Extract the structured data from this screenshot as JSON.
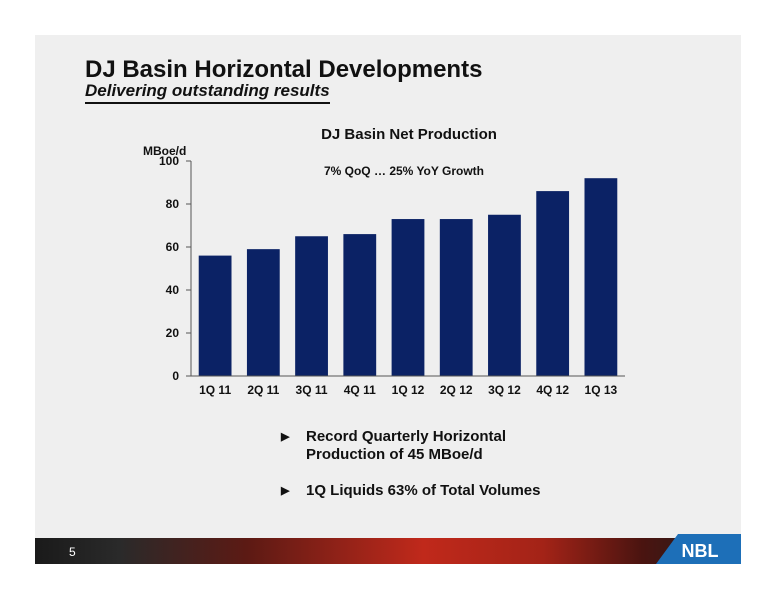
{
  "slide": {
    "title": "DJ Basin Horizontal Developments",
    "subtitle": "Delivering outstanding results",
    "page_number": "5",
    "logo_text": "NBL",
    "bullets": [
      "Record Quarterly Horizontal Production of 45 MBoe/d",
      "1Q Liquids 63% of Total Volumes"
    ],
    "colors": {
      "bar": "#0b2265",
      "background": "#efefef",
      "accent_red": "#c0291b",
      "logo_blue": "#1d6fb8"
    }
  },
  "chart_data": {
    "type": "bar",
    "title": "DJ Basin Net Production",
    "annotation": "7% QoQ … 25% YoY Growth",
    "ylabel": "MBoe/d",
    "xlabel": "",
    "categories": [
      "1Q 11",
      "2Q 11",
      "3Q 11",
      "4Q 11",
      "1Q 12",
      "2Q 12",
      "3Q 12",
      "4Q 12",
      "1Q 13"
    ],
    "values": [
      56,
      59,
      65,
      66,
      73,
      73,
      75,
      86,
      92
    ],
    "ylim": [
      0,
      100
    ],
    "yticks": [
      0,
      20,
      40,
      60,
      80,
      100
    ],
    "grid": false,
    "legend": "none"
  }
}
